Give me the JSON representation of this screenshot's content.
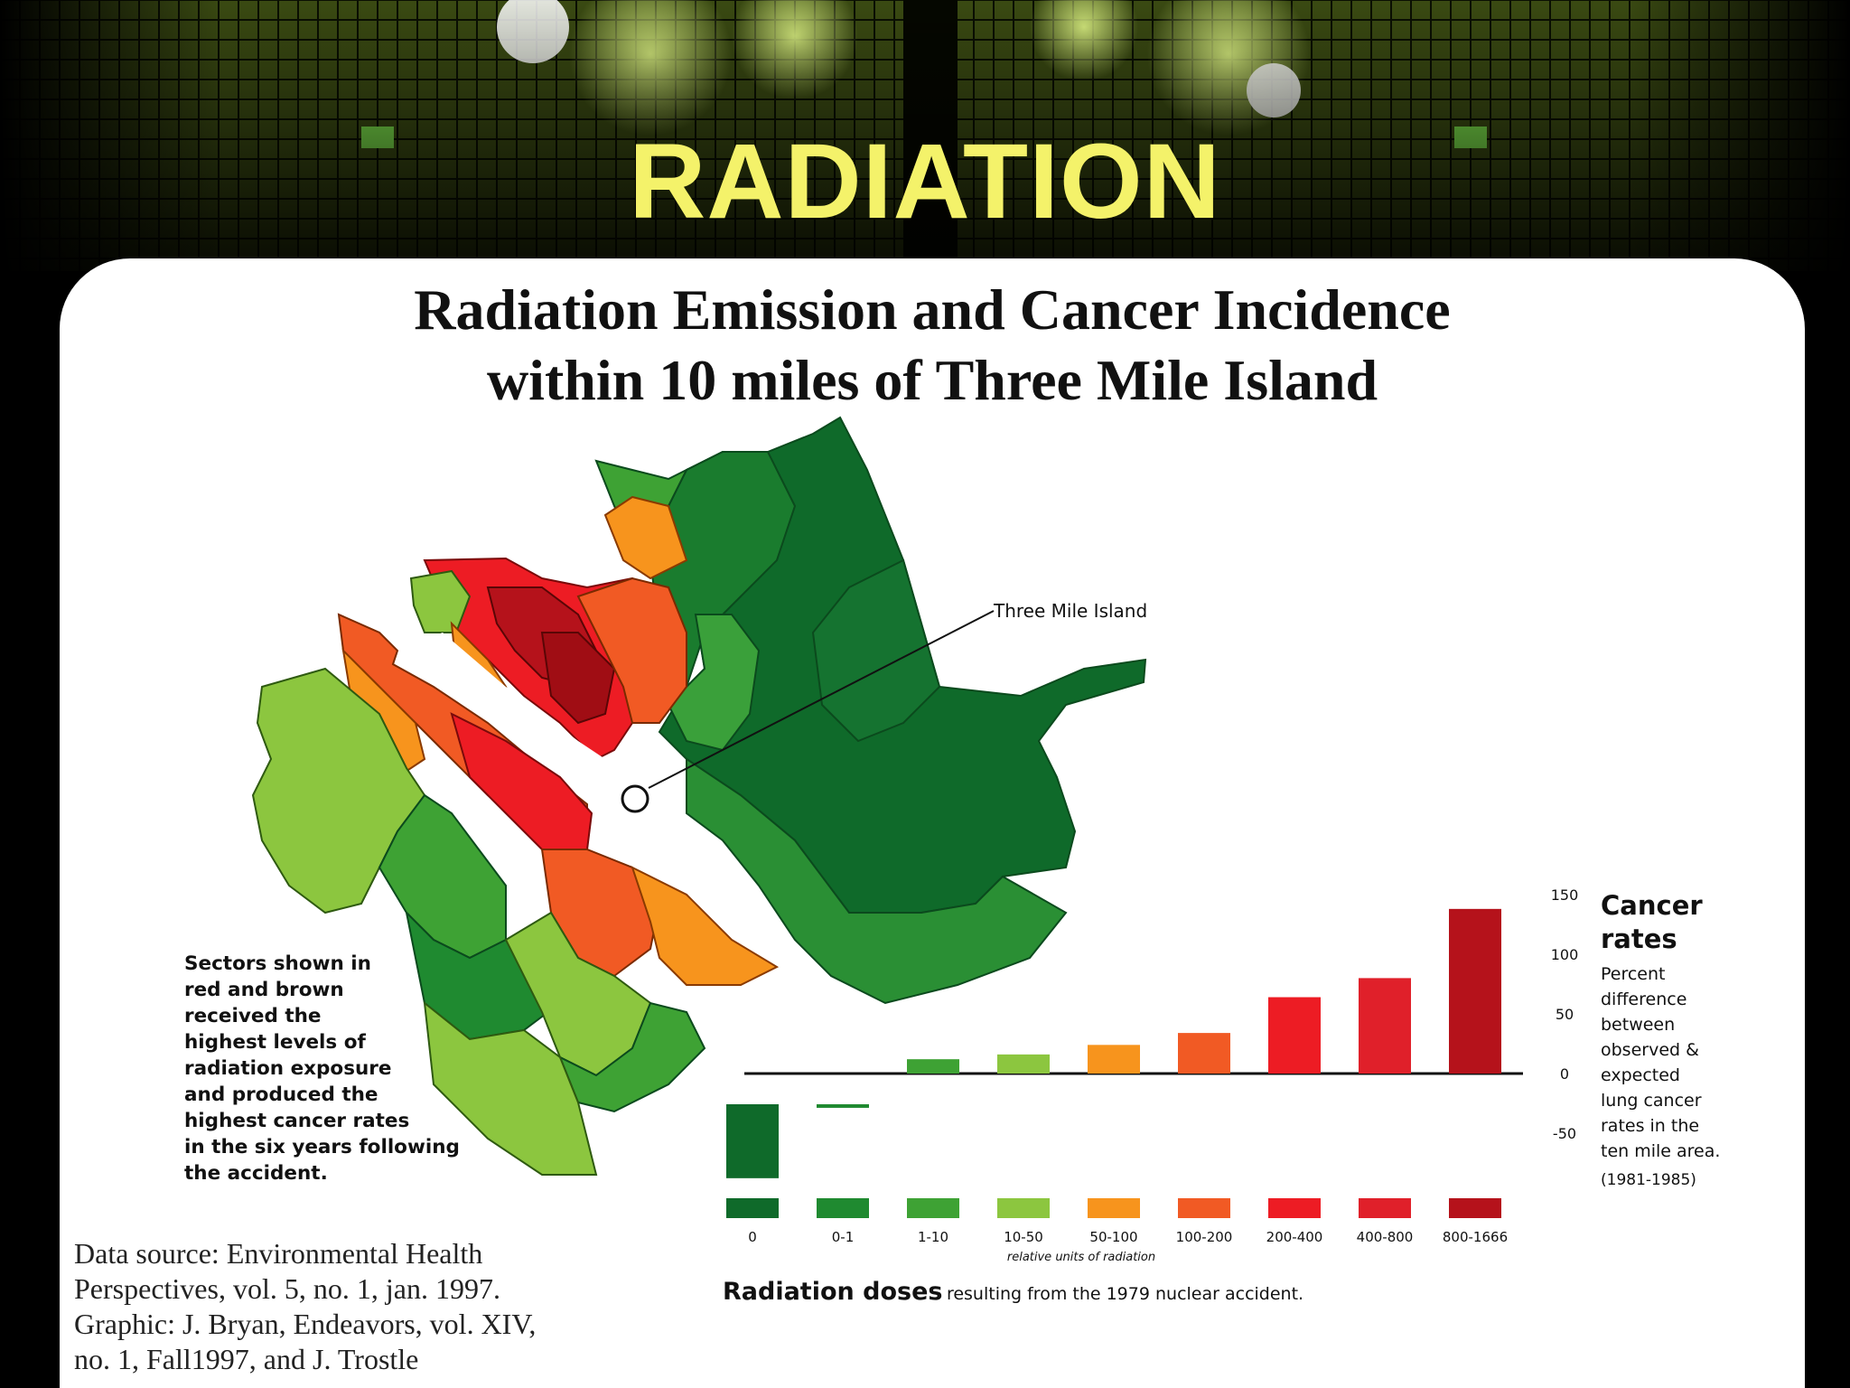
{
  "slide": {
    "title": "RADIATION"
  },
  "figure": {
    "map_label": "Three Mile Island",
    "note_lines": [
      "Sectors shown in",
      "red and brown",
      "received the",
      "highest levels of",
      "radiation exposure",
      "and produced the",
      "highest cancer rates",
      "in the six years following",
      "the accident."
    ],
    "source_lines": [
      "Data source: Environmental Health",
      "Perspectives, vol. 5, no. 1, jan. 1997.",
      "Graphic: J. Bryan, Endeavors, vol. XIV,",
      "no. 1, Fall1997, and J. Trostle"
    ],
    "legend": {
      "title_line1": "Cancer",
      "title_line2": "rates",
      "desc_lines": [
        "Percent",
        "difference",
        "between",
        "observed &",
        "expected",
        "lung cancer",
        "rates in the",
        "ten mile area."
      ],
      "period": "(1981-1985)"
    },
    "x_subtitle": "relative units of radiation",
    "x_label_bold": "Radiation doses",
    "x_label_rest": "resulting from the 1979 nuclear accident."
  },
  "chart_data": {
    "type": "bar",
    "title": "Radiation Emission and Cancer Incidence within 10 miles of Three Mile Island",
    "title_lines": [
      "Radiation Emission and Cancer Incidence",
      "within 10 miles of Three Mile Island"
    ],
    "xlabel": "Radiation doses resulting from the 1979 nuclear accident.",
    "ylabel": "Cancer rates",
    "categories": [
      "0",
      "0-1",
      "1-10",
      "10-50",
      "50-100",
      "100-200",
      "200-400",
      "400-800",
      "800-1666"
    ],
    "values": [
      -62,
      -3,
      12,
      16,
      24,
      34,
      64,
      80,
      138
    ],
    "colors": [
      "#0f6a2a",
      "#1f8a30",
      "#3ea234",
      "#8cc63f",
      "#f7941d",
      "#f15a24",
      "#ed1c24",
      "#e0202a",
      "#b5121b"
    ],
    "yticks": [
      150,
      100,
      50,
      0,
      -50
    ],
    "ylim": [
      -70,
      150
    ],
    "grid": false
  }
}
